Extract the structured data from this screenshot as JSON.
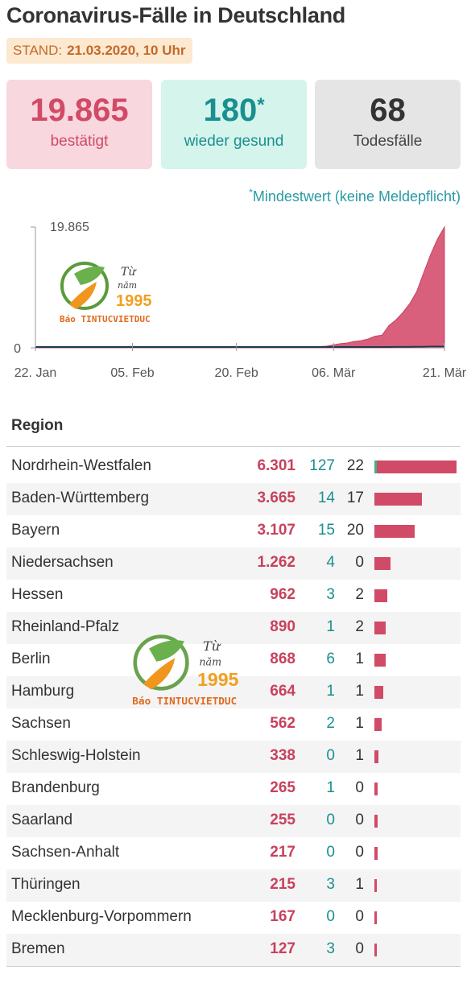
{
  "title": "Coronavirus-Fälle in Deutschland",
  "stand": {
    "label": "STAND:",
    "value": "21.03.2020, 10 Uhr"
  },
  "summary": {
    "confirmed": {
      "value": "19.865",
      "label": "bestätigt"
    },
    "recovered": {
      "value": "180",
      "asterisk": "*",
      "label": "wieder gesund"
    },
    "deaths": {
      "value": "68",
      "label": "Todesfälle"
    }
  },
  "note": {
    "asterisk": "*",
    "text": "Mindestwert (keine Meldepflicht)"
  },
  "logo": {
    "line1": "Từ",
    "line2": "năm",
    "year": "1995",
    "brand": "Báo TINTUCVIETDUC"
  },
  "colors": {
    "confirmed": "#d14a66",
    "recovered": "#1a8f8f",
    "deaths": "#333333",
    "area_fill": "#d8607c"
  },
  "chart_data": {
    "type": "area",
    "y_tick_labels": [
      "0",
      "19.865"
    ],
    "ylim": [
      0,
      19865
    ],
    "x_tick_labels": [
      "22. Jan",
      "05. Feb",
      "20. Feb",
      "06. Mär",
      "21. Mär"
    ],
    "x": [
      "22.01",
      "23.01",
      "24.01",
      "25.01",
      "26.01",
      "27.01",
      "28.01",
      "29.01",
      "30.01",
      "31.01",
      "01.02",
      "02.02",
      "03.02",
      "04.02",
      "05.02",
      "06.02",
      "07.02",
      "08.02",
      "09.02",
      "10.02",
      "11.02",
      "12.02",
      "13.02",
      "14.02",
      "15.02",
      "16.02",
      "17.02",
      "18.02",
      "19.02",
      "20.02",
      "21.02",
      "22.02",
      "23.02",
      "24.02",
      "25.02",
      "26.02",
      "27.02",
      "28.02",
      "29.02",
      "01.03",
      "02.03",
      "03.03",
      "04.03",
      "05.03",
      "06.03",
      "07.03",
      "08.03",
      "09.03",
      "10.03",
      "11.03",
      "12.03",
      "13.03",
      "14.03",
      "15.03",
      "16.03",
      "17.03",
      "18.03",
      "19.03",
      "20.03",
      "21.03"
    ],
    "series": [
      {
        "values": [
          0,
          0,
          0,
          0,
          0,
          0,
          1,
          4,
          4,
          5,
          8,
          10,
          12,
          12,
          12,
          12,
          13,
          13,
          14,
          14,
          16,
          16,
          16,
          16,
          16,
          16,
          16,
          16,
          16,
          16,
          16,
          16,
          16,
          16,
          17,
          27,
          46,
          48,
          79,
          130,
          159,
          196,
          262,
          482,
          670,
          799,
          1040,
          1176,
          1457,
          1908,
          2078,
          3675,
          4585,
          5795,
          7272,
          9257,
          12327,
          15320,
          17900,
          19865
        ]
      },
      {
        "values": [
          0,
          0,
          0,
          0,
          0,
          0,
          0,
          0,
          0,
          0,
          0,
          0,
          0,
          0,
          0,
          0,
          0,
          0,
          0,
          0,
          0,
          0,
          0,
          0,
          0,
          0,
          0,
          0,
          0,
          0,
          0,
          0,
          0,
          0,
          0,
          0,
          0,
          0,
          0,
          0,
          0,
          0,
          0,
          0,
          0,
          0,
          0,
          0,
          1,
          2,
          3,
          5,
          8,
          12,
          18,
          26,
          46,
          67,
          68,
          68
        ]
      }
    ]
  },
  "table": {
    "header": "Region",
    "rows": [
      {
        "name": "Nordrhein-Westfalen",
        "confirmed": "6.301",
        "recovered": "127",
        "deaths": "22",
        "value": 6301
      },
      {
        "name": "Baden-Württemberg",
        "confirmed": "3.665",
        "recovered": "14",
        "deaths": "17",
        "value": 3665
      },
      {
        "name": "Bayern",
        "confirmed": "3.107",
        "recovered": "15",
        "deaths": "20",
        "value": 3107
      },
      {
        "name": "Niedersachsen",
        "confirmed": "1.262",
        "recovered": "4",
        "deaths": "0",
        "value": 1262
      },
      {
        "name": "Hessen",
        "confirmed": "962",
        "recovered": "3",
        "deaths": "2",
        "value": 962
      },
      {
        "name": "Rheinland-Pfalz",
        "confirmed": "890",
        "recovered": "1",
        "deaths": "2",
        "value": 890
      },
      {
        "name": "Berlin",
        "confirmed": "868",
        "recovered": "6",
        "deaths": "1",
        "value": 868
      },
      {
        "name": "Hamburg",
        "confirmed": "664",
        "recovered": "1",
        "deaths": "1",
        "value": 664
      },
      {
        "name": "Sachsen",
        "confirmed": "562",
        "recovered": "2",
        "deaths": "1",
        "value": 562
      },
      {
        "name": "Schleswig-Holstein",
        "confirmed": "338",
        "recovered": "0",
        "deaths": "1",
        "value": 338
      },
      {
        "name": "Brandenburg",
        "confirmed": "265",
        "recovered": "1",
        "deaths": "0",
        "value": 265
      },
      {
        "name": "Saarland",
        "confirmed": "255",
        "recovered": "0",
        "deaths": "0",
        "value": 255
      },
      {
        "name": "Sachsen-Anhalt",
        "confirmed": "217",
        "recovered": "0",
        "deaths": "0",
        "value": 217
      },
      {
        "name": "Thüringen",
        "confirmed": "215",
        "recovered": "3",
        "deaths": "1",
        "value": 215
      },
      {
        "name": "Mecklenburg-Vorpommern",
        "confirmed": "167",
        "recovered": "0",
        "deaths": "0",
        "value": 167
      },
      {
        "name": "Bremen",
        "confirmed": "127",
        "recovered": "3",
        "deaths": "0",
        "value": 127
      }
    ]
  }
}
